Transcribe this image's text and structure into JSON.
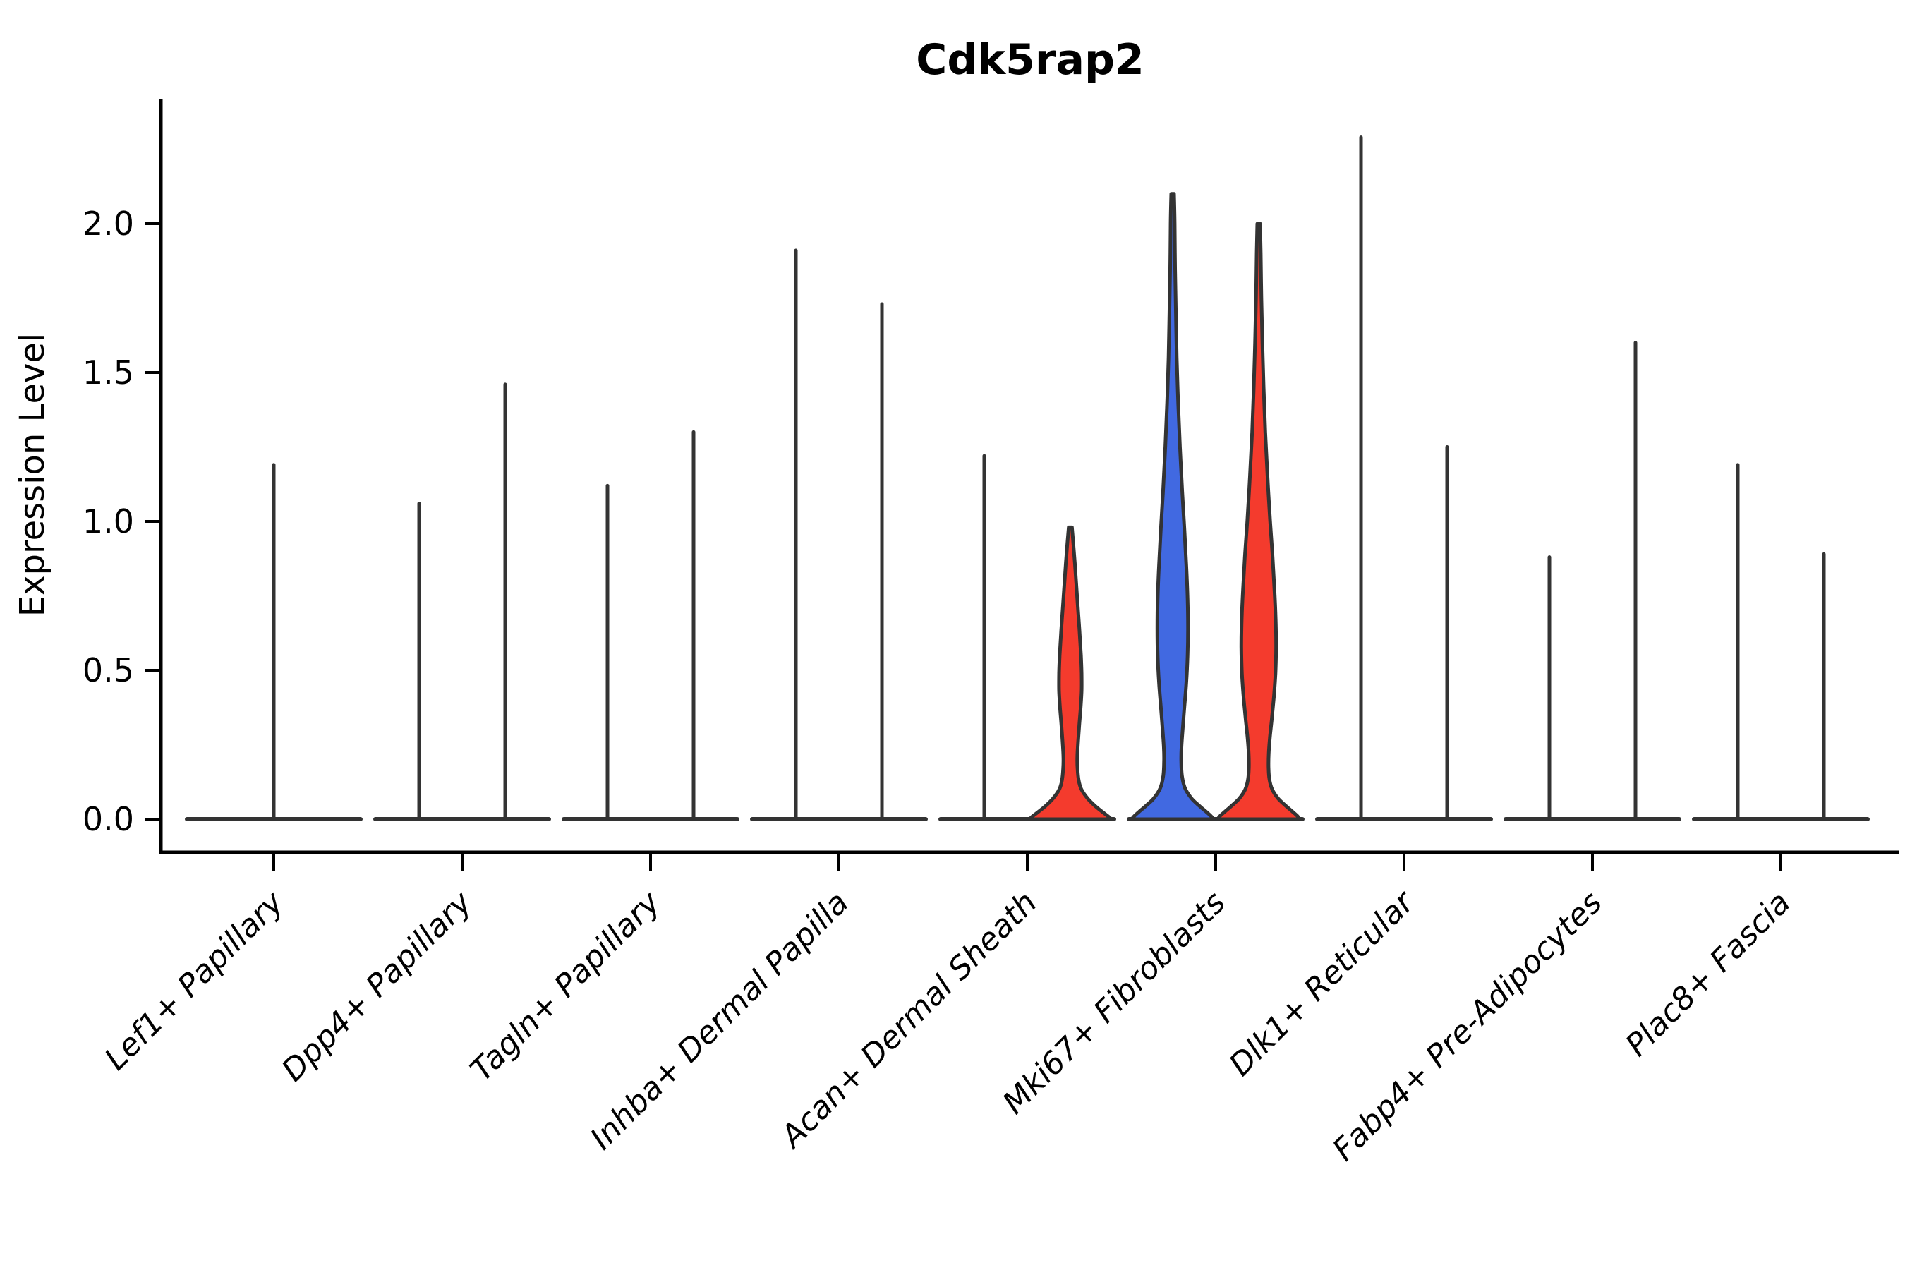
{
  "title": "Cdk5rap2",
  "ylabel": "Expression Level",
  "colors": {
    "red": "#F43B2D",
    "blue": "#4169E1",
    "violin_outline": "#333333",
    "axis": "#000000",
    "background": "#ffffff"
  },
  "chart_data": {
    "type": "violin",
    "title": "Cdk5rap2",
    "xlabel": "",
    "ylabel": "Expression Level",
    "yticks": [
      "0.0",
      "0.5",
      "1.0",
      "1.5",
      "2.0"
    ],
    "ytick_values": [
      0.0,
      0.5,
      1.0,
      1.5,
      2.0
    ],
    "ylim": [
      -0.11,
      2.42
    ],
    "grid": false,
    "legend": "none",
    "categories": [
      "Lef1+ Papillary",
      "Dpp4+ Papillary",
      "Tagln+ Papillary",
      "Inhba+ Dermal Papilla",
      "Acan+ Dermal Sheath",
      "Mki67+ Fibroblasts",
      "Dlk1+ Reticular",
      "Fabp4+ Pre-Adipocytes",
      "Plac8+ Fascia"
    ],
    "violins": [
      {
        "category": "Lef1+ Papillary",
        "members": [
          {
            "pos": "center",
            "style": "spike",
            "max": 1.19
          }
        ]
      },
      {
        "category": "Dpp4+ Papillary",
        "members": [
          {
            "pos": "left",
            "style": "spike",
            "max": 1.06
          },
          {
            "pos": "right",
            "style": "spike",
            "max": 1.46
          }
        ]
      },
      {
        "category": "Tagln+ Papillary",
        "members": [
          {
            "pos": "left",
            "style": "spike",
            "max": 1.12
          },
          {
            "pos": "right",
            "style": "spike",
            "max": 1.3
          }
        ]
      },
      {
        "category": "Inhba+ Dermal Papilla",
        "members": [
          {
            "pos": "left",
            "style": "spike",
            "max": 1.91
          },
          {
            "pos": "right",
            "style": "spike",
            "max": 1.73
          }
        ]
      },
      {
        "category": "Acan+ Dermal Sheath",
        "members": [
          {
            "pos": "left",
            "style": "spike",
            "max": 1.22
          },
          {
            "pos": "right",
            "style": "violin",
            "fill": "red",
            "max": 0.98,
            "profile": [
              [
                0.98,
                0.04
              ],
              [
                0.93,
                0.07
              ],
              [
                0.86,
                0.11
              ],
              [
                0.78,
                0.15
              ],
              [
                0.7,
                0.19
              ],
              [
                0.62,
                0.23
              ],
              [
                0.55,
                0.26
              ],
              [
                0.49,
                0.275
              ],
              [
                0.43,
                0.275
              ],
              [
                0.37,
                0.25
              ],
              [
                0.31,
                0.215
              ],
              [
                0.26,
                0.19
              ],
              [
                0.21,
                0.17
              ],
              [
                0.17,
                0.175
              ],
              [
                0.13,
                0.205
              ],
              [
                0.1,
                0.27
              ],
              [
                0.07,
                0.42
              ],
              [
                0.045,
                0.6
              ],
              [
                0.025,
                0.78
              ],
              [
                0.01,
                0.92
              ],
              [
                0.0,
                1.0
              ]
            ]
          }
        ]
      },
      {
        "category": "Mki67+ Fibroblasts",
        "members": [
          {
            "pos": "left",
            "style": "violin",
            "fill": "blue",
            "max": 2.1,
            "profile": [
              [
                2.1,
                0.035
              ],
              [
                2.0,
                0.05
              ],
              [
                1.85,
                0.06
              ],
              [
                1.7,
                0.08
              ],
              [
                1.55,
                0.1
              ],
              [
                1.4,
                0.135
              ],
              [
                1.25,
                0.18
              ],
              [
                1.1,
                0.235
              ],
              [
                0.97,
                0.29
              ],
              [
                0.85,
                0.335
              ],
              [
                0.74,
                0.365
              ],
              [
                0.64,
                0.375
              ],
              [
                0.55,
                0.365
              ],
              [
                0.46,
                0.335
              ],
              [
                0.38,
                0.29
              ],
              [
                0.3,
                0.245
              ],
              [
                0.24,
                0.215
              ],
              [
                0.19,
                0.21
              ],
              [
                0.145,
                0.23
              ],
              [
                0.105,
                0.3
              ],
              [
                0.07,
                0.46
              ],
              [
                0.045,
                0.65
              ],
              [
                0.025,
                0.82
              ],
              [
                0.01,
                0.94
              ],
              [
                0.0,
                1.0
              ]
            ]
          },
          {
            "pos": "right",
            "style": "violin",
            "fill": "red",
            "max": 2.0,
            "profile": [
              [
                2.0,
                0.035
              ],
              [
                1.9,
                0.05
              ],
              [
                1.75,
                0.065
              ],
              [
                1.6,
                0.09
              ],
              [
                1.45,
                0.12
              ],
              [
                1.3,
                0.16
              ],
              [
                1.15,
                0.215
              ],
              [
                1.0,
                0.28
              ],
              [
                0.88,
                0.34
              ],
              [
                0.77,
                0.385
              ],
              [
                0.67,
                0.415
              ],
              [
                0.58,
                0.425
              ],
              [
                0.49,
                0.41
              ],
              [
                0.41,
                0.37
              ],
              [
                0.33,
                0.315
              ],
              [
                0.27,
                0.27
              ],
              [
                0.22,
                0.245
              ],
              [
                0.175,
                0.24
              ],
              [
                0.135,
                0.26
              ],
              [
                0.1,
                0.33
              ],
              [
                0.07,
                0.47
              ],
              [
                0.045,
                0.66
              ],
              [
                0.025,
                0.83
              ],
              [
                0.01,
                0.95
              ],
              [
                0.0,
                1.0
              ]
            ]
          }
        ]
      },
      {
        "category": "Dlk1+ Reticular",
        "members": [
          {
            "pos": "left",
            "style": "spike",
            "max": 2.29
          },
          {
            "pos": "right",
            "style": "spike",
            "max": 1.25
          }
        ]
      },
      {
        "category": "Fabp4+ Pre-Adipocytes",
        "members": [
          {
            "pos": "left",
            "style": "spike",
            "max": 0.88
          },
          {
            "pos": "right",
            "style": "spike",
            "max": 1.6
          }
        ]
      },
      {
        "category": "Plac8+ Fascia",
        "members": [
          {
            "pos": "left",
            "style": "spike",
            "max": 1.19
          },
          {
            "pos": "right",
            "style": "spike",
            "max": 0.89
          }
        ]
      }
    ]
  }
}
